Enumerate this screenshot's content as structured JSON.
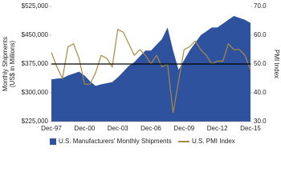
{
  "chart_data": {
    "type": "area_line",
    "y_label_lines": [
      "Monthly Shipments",
      "(US$ in Millions)"
    ],
    "y2_label": "PMI Index",
    "categories": [
      "Dec-97",
      null,
      null,
      null,
      null,
      null,
      "Dec-00",
      null,
      null,
      null,
      null,
      null,
      "Dec-03",
      null,
      null,
      null,
      null,
      null,
      "Dec-06",
      null,
      null,
      null,
      null,
      null,
      "Dec-09",
      null,
      null,
      null,
      null,
      null,
      "Dec-12",
      null,
      null,
      null,
      null,
      null,
      "Dec-15"
    ],
    "series": [
      {
        "name": "U.S. Manufacturers' Monthly Shipments",
        "color": "#2f529e",
        "axis": "y",
        "values": [
          335000,
          337000,
          338000,
          345000,
          350000,
          355000,
          345000,
          330000,
          318000,
          322000,
          325000,
          328000,
          340000,
          355000,
          370000,
          380000,
          395000,
          410000,
          410000,
          425000,
          440000,
          470000,
          410000,
          360000,
          385000,
          410000,
          430000,
          450000,
          460000,
          470000,
          470000,
          480000,
          490000,
          500000,
          495000,
          490000,
          482000
        ]
      },
      {
        "name": "U.S. PMI Index",
        "color": "#a68b45",
        "axis": "y2",
        "values": [
          54,
          49,
          45,
          56,
          57,
          52,
          43,
          43,
          47,
          53,
          52,
          49,
          62,
          61,
          57,
          53,
          55,
          53,
          50,
          53,
          49,
          50,
          33,
          44,
          55,
          56,
          58,
          55,
          53,
          50,
          51,
          51,
          57,
          55,
          55,
          53,
          48
        ]
      }
    ],
    "ylim": [
      225000,
      525000
    ],
    "yticks": [
      {
        "value": 225000,
        "label": "$225,000"
      },
      {
        "value": 300000,
        "label": "$300,000"
      },
      {
        "value": 375000,
        "label": "$375,000"
      },
      {
        "value": 450000,
        "label": "$450,000"
      },
      {
        "value": 525000,
        "label": "$525,000"
      }
    ],
    "y2lim": [
      30,
      70
    ],
    "y2ticks": [
      {
        "value": 30,
        "label": "30.0"
      },
      {
        "value": 40,
        "label": "40.0"
      },
      {
        "value": 50,
        "label": "50.0"
      },
      {
        "value": 60,
        "label": "60.0"
      },
      {
        "value": 70,
        "label": "70.0"
      }
    ],
    "y2_reference": 50
  }
}
